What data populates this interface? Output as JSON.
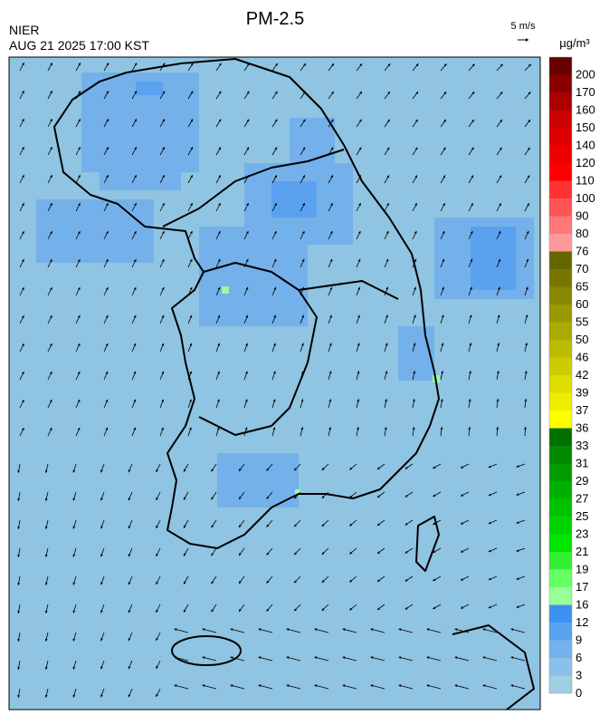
{
  "header": {
    "title": "PM-2.5",
    "agency": "NIER",
    "timestamp": "AUG 21 2025 17:00 KST",
    "wind_scale": "5 m/s",
    "unit": "µg/m³"
  },
  "colorbar": {
    "ticks": [
      0,
      3,
      6,
      9,
      12,
      16,
      17,
      19,
      21,
      23,
      25,
      27,
      29,
      31,
      33,
      36,
      37,
      39,
      42,
      46,
      50,
      55,
      60,
      65,
      70,
      76,
      80,
      90,
      100,
      110,
      120,
      140,
      150,
      160,
      170,
      200
    ],
    "colors": [
      "#a0cfe4",
      "#8ac0ea",
      "#74b2ee",
      "#58a3f0",
      "#3c92f2",
      "#99ff99",
      "#66ff66",
      "#33f033",
      "#00e600",
      "#00d400",
      "#00c200",
      "#00b000",
      "#009c00",
      "#008a00",
      "#007000",
      "#ffff00",
      "#eeee00",
      "#dddd00",
      "#cccc00",
      "#bbbb00",
      "#aaaa00",
      "#999900",
      "#888800",
      "#777700",
      "#666600",
      "#ff9999",
      "#ff7777",
      "#ff5555",
      "#ff3333",
      "#ff0000",
      "#ee0000",
      "#dd0000",
      "#cc0000",
      "#aa0000",
      "#880000",
      "#660000"
    ]
  }
}
